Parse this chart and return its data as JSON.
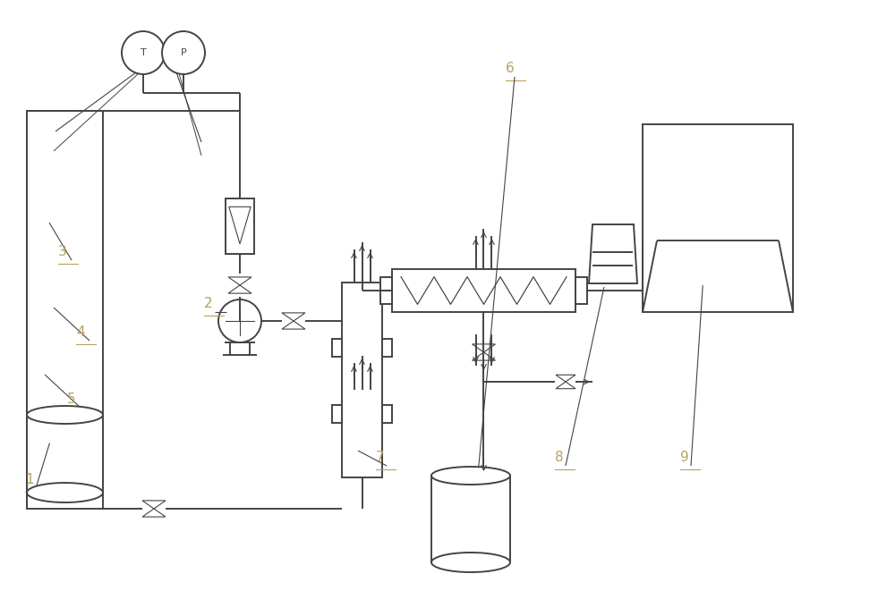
{
  "bg_color": "#ffffff",
  "line_color": "#444444",
  "label_color": "#b8a060",
  "lw": 1.4,
  "thin_lw": 0.8
}
